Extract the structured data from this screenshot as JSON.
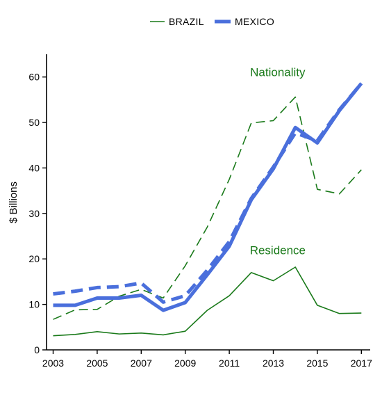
{
  "chart_data": {
    "type": "line",
    "title": "",
    "xlabel": "",
    "ylabel": "$ Billions",
    "ylim": [
      0,
      65
    ],
    "xlim": [
      2002.7,
      2017.4
    ],
    "yticks": [
      0,
      10,
      20,
      30,
      40,
      50,
      60
    ],
    "xticks": [
      2003,
      2005,
      2007,
      2009,
      2011,
      2013,
      2015,
      2017
    ],
    "grid": false,
    "legend_position": "top-center",
    "x": [
      2003,
      2004,
      2005,
      2006,
      2007,
      2008,
      2009,
      2010,
      2011,
      2012,
      2013,
      2014,
      2015,
      2016,
      2017
    ],
    "legend": [
      {
        "name": "BRAZIL",
        "color": "#1a7a1a"
      },
      {
        "name": "MEXICO",
        "color": "#4a6fdc"
      }
    ],
    "annotations": [
      {
        "text": "Nationality",
        "x": 2013.2,
        "y": 60.2,
        "color": "#1a7a1a"
      },
      {
        "text": "Residence",
        "x": 2013.2,
        "y": 21.0,
        "color": "#1a7a1a"
      }
    ],
    "series": [
      {
        "country": "BRAZIL",
        "basis": "Nationality",
        "dash": "dashed",
        "color": "#1a7a1a",
        "values": [
          6.7,
          8.8,
          8.9,
          11.8,
          13.3,
          11.4,
          18.5,
          27.0,
          37.5,
          49.9,
          50.4,
          55.6,
          35.3,
          34.3,
          39.6
        ]
      },
      {
        "country": "BRAZIL",
        "basis": "Residence",
        "dash": "solid",
        "color": "#1a7a1a",
        "values": [
          3.1,
          3.4,
          4.0,
          3.5,
          3.7,
          3.3,
          4.1,
          8.7,
          11.9,
          17.0,
          15.2,
          18.2,
          9.8,
          8.0,
          8.1
        ]
      },
      {
        "country": "MEXICO",
        "basis": "Nationality",
        "dash": "dashed",
        "color": "#4a6fdc",
        "values": [
          12.3,
          12.9,
          13.7,
          13.9,
          14.7,
          10.5,
          11.9,
          17.5,
          23.8,
          33.3,
          40.2,
          47.7,
          46.0,
          52.8,
          58.6
        ]
      },
      {
        "country": "MEXICO",
        "basis": "Residence",
        "dash": "solid",
        "color": "#4a6fdc",
        "values": [
          9.8,
          9.8,
          11.4,
          11.4,
          12.0,
          8.7,
          10.4,
          16.5,
          22.8,
          33.0,
          39.8,
          48.9,
          45.5,
          52.6,
          58.6
        ]
      }
    ]
  }
}
